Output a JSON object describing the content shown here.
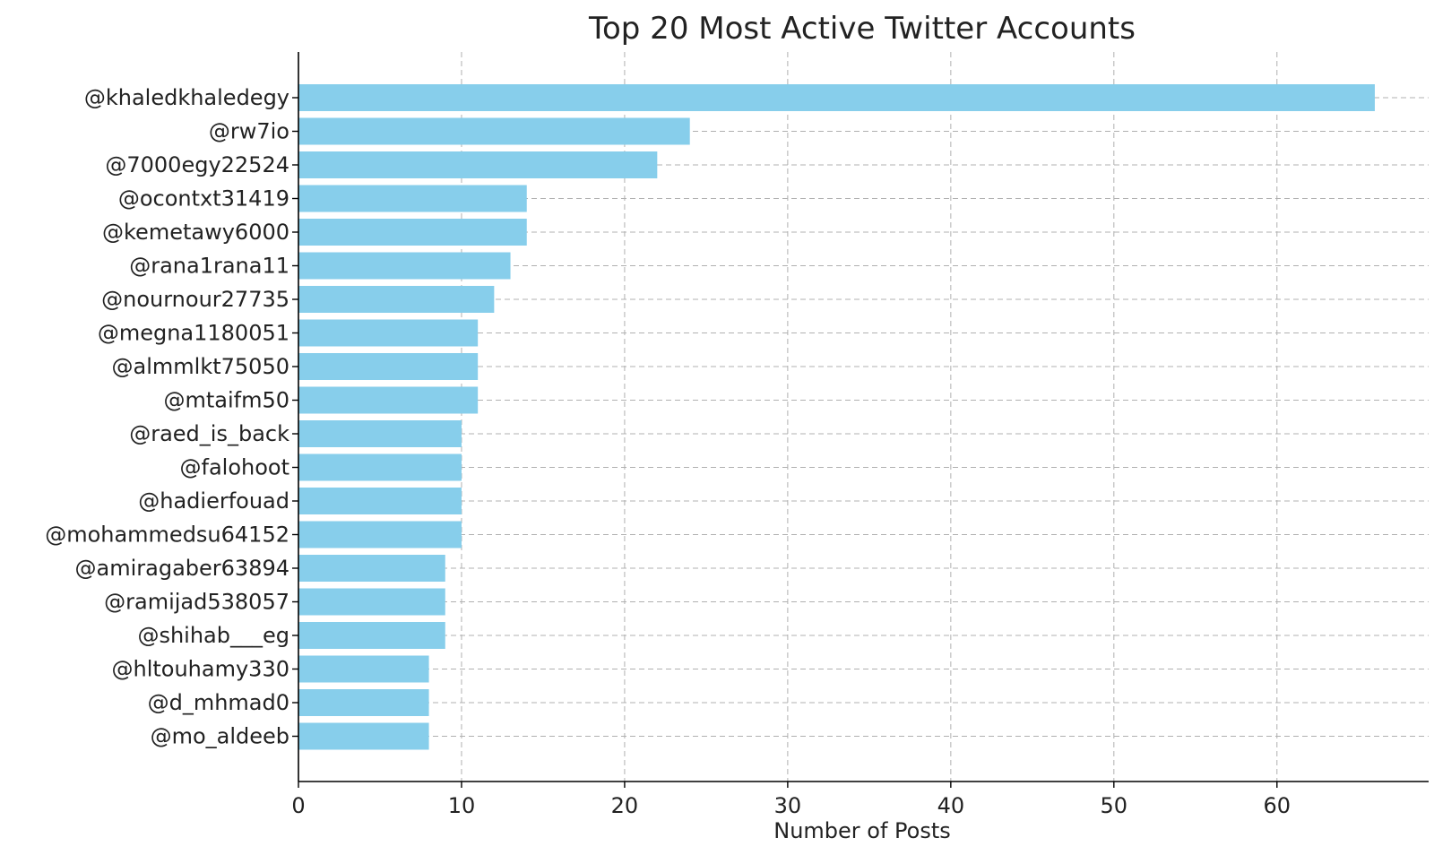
{
  "chart_data": {
    "type": "bar",
    "orientation": "horizontal",
    "title": "Top 20 Most Active Twitter Accounts",
    "xlabel": "Number of Posts",
    "ylabel": "",
    "xlim": [
      0,
      69.3
    ],
    "xticks": [
      0,
      10,
      20,
      30,
      40,
      50,
      60
    ],
    "grid": true,
    "bar_color": "#87ceeb",
    "categories": [
      "@khaledkhaledegy",
      "@rw7io",
      "@7000egy22524",
      "@ocontxt31419",
      "@kemetawy6000",
      "@rana1rana11",
      "@nournour27735",
      "@megna1180051",
      "@almmlkt75050",
      "@mtaifm50",
      "@raed_is_back",
      "@falohoot",
      "@hadierfouad",
      "@mohammedsu64152",
      "@amiragaber63894",
      "@ramijad538057",
      "@shihab___eg",
      "@hltouhamy330",
      "@d_mhmad0",
      "@mo_aldeeb"
    ],
    "values": [
      66,
      24,
      22,
      14,
      14,
      13,
      12,
      11,
      11,
      11,
      10,
      10,
      10,
      10,
      9,
      9,
      9,
      8,
      8,
      8
    ]
  }
}
